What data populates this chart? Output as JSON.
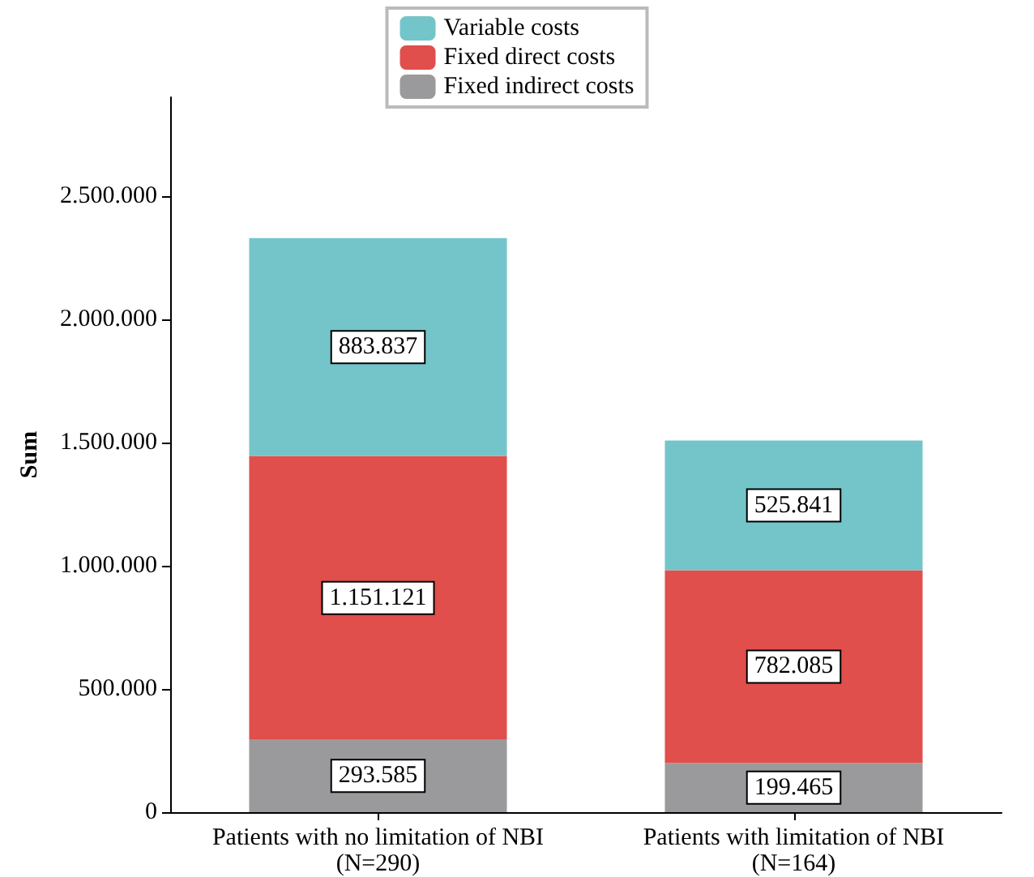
{
  "chart_data": {
    "type": "bar",
    "stacked": true,
    "ylabel": "Sum",
    "categories": [
      "Patients with no limitation of NBI\n(N=290)",
      "Patients with limitation of NBI\n(N=164)"
    ],
    "series": [
      {
        "name": "Fixed indirect costs",
        "color": "#9a9a9c",
        "values": [
          293585,
          199465
        ],
        "value_labels": [
          "293.585",
          "199.465"
        ]
      },
      {
        "name": "Fixed direct costs",
        "color": "#e04f4b",
        "values": [
          1151121,
          782085
        ],
        "value_labels": [
          "1.151.121",
          "782.085"
        ]
      },
      {
        "name": "Variable costs",
        "color": "#74c5c9",
        "values": [
          883837,
          525841
        ],
        "value_labels": [
          "883.837",
          "525.841"
        ]
      }
    ],
    "ylim": [
      0,
      2900000
    ],
    "yticks": [
      {
        "value": 0,
        "label": "0"
      },
      {
        "value": 500000,
        "label": "500.000"
      },
      {
        "value": 1000000,
        "label": "1.000.000"
      },
      {
        "value": 1500000,
        "label": "1.500.000"
      },
      {
        "value": 2000000,
        "label": "2.000.000"
      },
      {
        "value": 2500000,
        "label": "2.500.000"
      }
    ],
    "grid": false,
    "legend": "top"
  }
}
